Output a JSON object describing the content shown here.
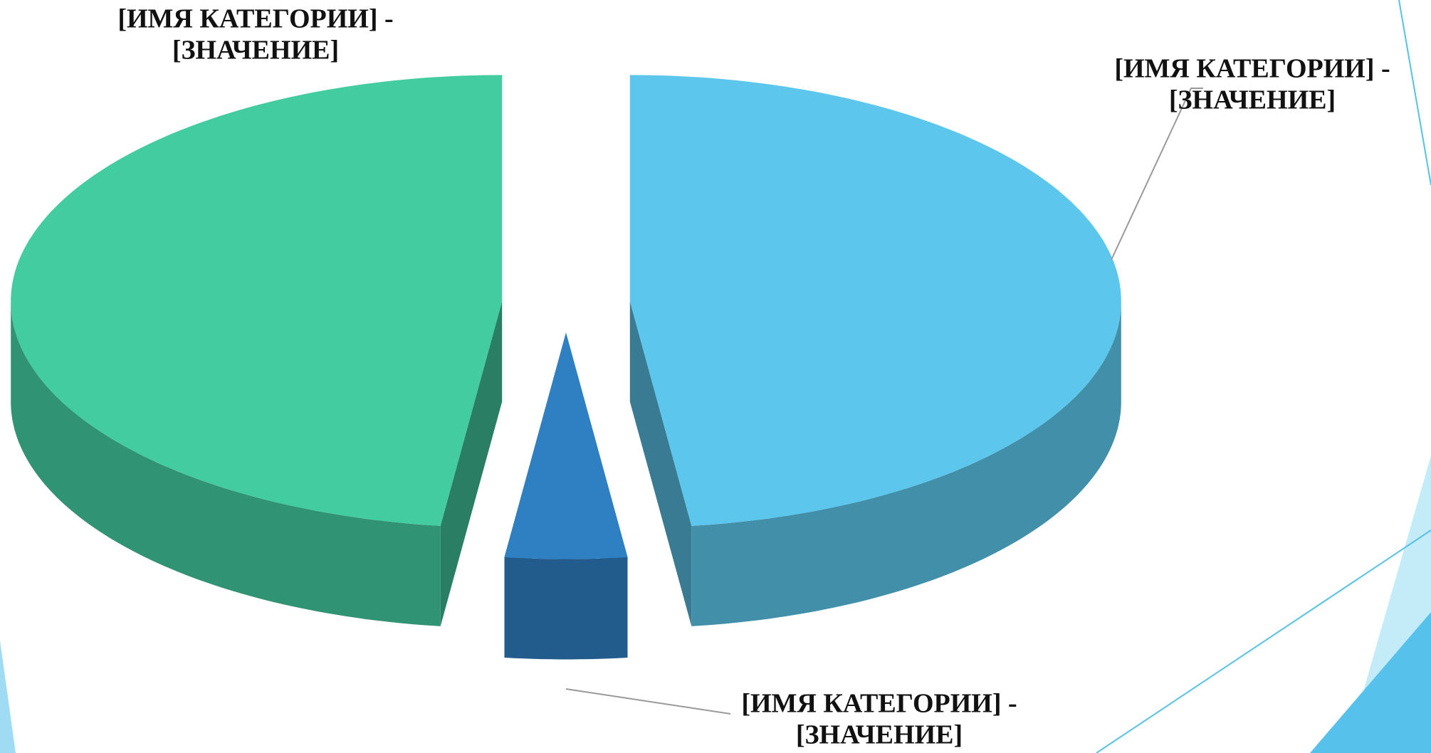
{
  "chart_data": {
    "type": "pie",
    "labels": [
      [
        "[ИМЯ КАТЕГОРИИ] -",
        "[ЗНАЧЕНИЕ]"
      ],
      [
        "[ИМЯ КАТЕГОРИИ] -",
        "[ЗНАЧЕНИЕ]"
      ],
      [
        "[ИМЯ КАТЕГОРИИ] -",
        "[ЗНАЧЕНИЕ]"
      ]
    ],
    "values": [
      48,
      4,
      48
    ],
    "colors": [
      "#5cc6ec",
      "#2e80c3",
      "#42cca0"
    ]
  }
}
